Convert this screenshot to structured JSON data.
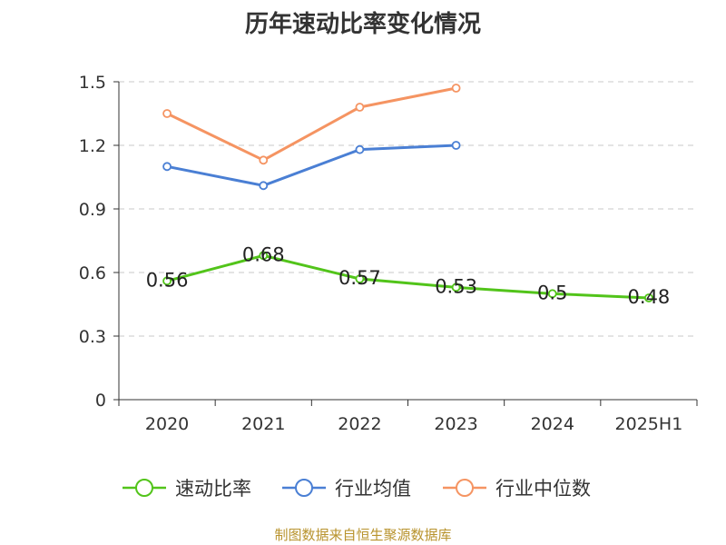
{
  "chart_data": {
    "type": "line",
    "title": "历年速动比率变化情况",
    "categories": [
      "2020",
      "2021",
      "2022",
      "2023",
      "2024",
      "2025H1"
    ],
    "ylim": [
      0,
      1.5
    ],
    "yticks": [
      "0",
      "0.3",
      "0.6",
      "0.9",
      "1.2",
      "1.5"
    ],
    "grid": true,
    "legend_position": "bottom",
    "series": [
      {
        "name": "速动比率",
        "values": [
          0.56,
          0.68,
          0.57,
          0.53,
          0.5,
          0.48
        ],
        "labels": [
          "0.56",
          "0.68",
          "0.57",
          "0.53",
          "0.5",
          "0.48"
        ],
        "color": "#52c41a",
        "show_labels": true
      },
      {
        "name": "行业均值",
        "values": [
          1.1,
          1.01,
          1.18,
          1.2,
          null,
          null
        ],
        "color": "#4a7fd4",
        "show_labels": false
      },
      {
        "name": "行业中位数",
        "values": [
          1.35,
          1.13,
          1.38,
          1.47,
          null,
          null
        ],
        "color": "#f59462",
        "show_labels": false
      }
    ]
  },
  "source_note": "制图数据来自恒生聚源数据库"
}
